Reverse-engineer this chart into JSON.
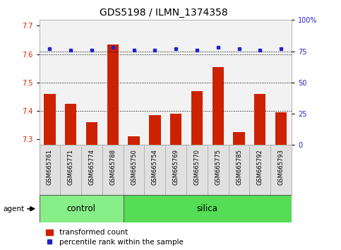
{
  "title": "GDS5198 / ILMN_1374358",
  "samples": [
    "GSM665761",
    "GSM665771",
    "GSM665774",
    "GSM665788",
    "GSM665750",
    "GSM665754",
    "GSM665769",
    "GSM665770",
    "GSM665775",
    "GSM665785",
    "GSM665792",
    "GSM665793"
  ],
  "transformed_count": [
    7.46,
    7.425,
    7.36,
    7.635,
    7.31,
    7.385,
    7.39,
    7.47,
    7.555,
    7.325,
    7.46,
    7.395
  ],
  "percentile_rank": [
    77,
    76,
    76,
    78,
    76,
    76,
    77,
    76,
    78,
    77,
    76,
    77
  ],
  "ylim_left": [
    7.28,
    7.72
  ],
  "ylim_right": [
    0,
    100
  ],
  "yticks_left": [
    7.3,
    7.4,
    7.5,
    7.6,
    7.7
  ],
  "yticks_right": [
    0,
    25,
    50,
    75,
    100
  ],
  "bar_color": "#cc2200",
  "dot_color": "#2222cc",
  "groups": [
    {
      "label": "control",
      "start": 0,
      "end": 4,
      "color": "#88ee88"
    },
    {
      "label": "silica",
      "start": 4,
      "end": 12,
      "color": "#55dd55"
    }
  ],
  "agent_label": "agent",
  "legend_bar_label": "transformed count",
  "legend_dot_label": "percentile rank within the sample",
  "grid_color": "#000000",
  "background_color": "#ffffff",
  "plot_bg_color": "#f2f2f2",
  "cell_color": "#e0e0e0",
  "title_fontsize": 10,
  "tick_label_fontsize": 7,
  "sample_fontsize": 6,
  "group_fontsize": 8.5,
  "legend_fontsize": 7.5
}
